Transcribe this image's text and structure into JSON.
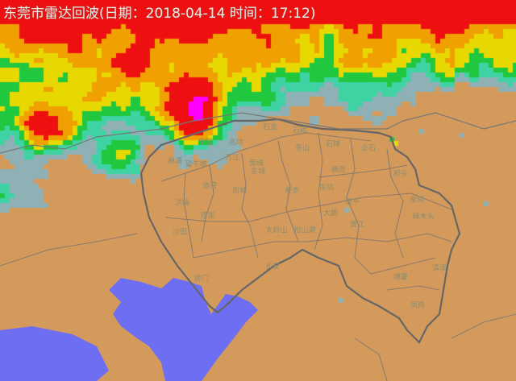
{
  "title": "东莞市雷达回波(日期：2018-04-14 时间：17:12)",
  "colors": {
    "land": "#d49a5c",
    "water": "#6e6ef2",
    "border_major": "#666666",
    "border_minor": "#8a7a6a",
    "echo_levels": [
      "#8fb1b6",
      "#3fd3a3",
      "#20c840",
      "#e6d800",
      "#f0a000",
      "#ee1010",
      "#ff00ff"
    ]
  },
  "towns": [
    "石龙",
    "石碣",
    "茶山",
    "石排",
    "企石",
    "横沥",
    "东坑",
    "常平",
    "大朗",
    "黄江",
    "桥头",
    "谢岗",
    "樟木头",
    "清溪",
    "塘厦",
    "凤岗",
    "中堂",
    "高埗",
    "万江",
    "莞城",
    "东城",
    "麻涌",
    "望牛墩",
    "道滘",
    "洪梅",
    "南城",
    "厚街",
    "沙田",
    "寮步",
    "大岭山",
    "松山湖",
    "长安",
    "虎门"
  ]
}
